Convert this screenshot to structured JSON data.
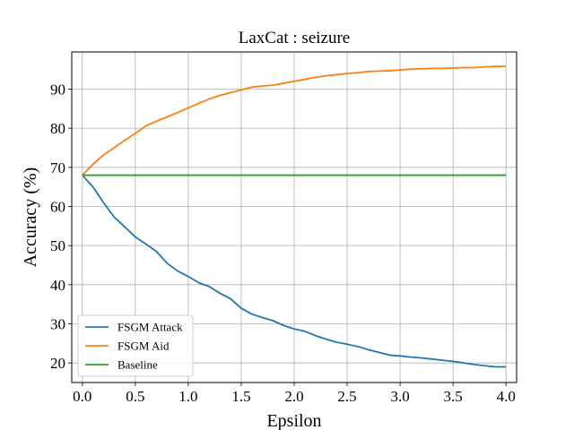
{
  "chart_data": {
    "type": "line",
    "title": "LaxCat : seizure",
    "xlabel": "Epsilon",
    "ylabel": "Accuracy (%)",
    "xlim": [
      -0.1,
      4.1
    ],
    "ylim": [
      15,
      99.5
    ],
    "xticks": [
      0.0,
      0.5,
      1.0,
      1.5,
      2.0,
      2.5,
      3.0,
      3.5,
      4.0
    ],
    "xtick_labels": [
      "0.0",
      "0.5",
      "1.0",
      "1.5",
      "2.0",
      "2.5",
      "3.0",
      "3.5",
      "4.0"
    ],
    "yticks": [
      20,
      30,
      40,
      50,
      60,
      70,
      80,
      90
    ],
    "ytick_labels": [
      "20",
      "30",
      "40",
      "50",
      "60",
      "70",
      "80",
      "90"
    ],
    "grid": true,
    "legend_position": "lower-left",
    "series": [
      {
        "name": "FSGM Attack",
        "color": "#1f77b4",
        "x": [
          0.0,
          0.1,
          0.2,
          0.3,
          0.4,
          0.5,
          0.6,
          0.7,
          0.8,
          0.9,
          1.0,
          1.1,
          1.2,
          1.3,
          1.4,
          1.5,
          1.6,
          1.7,
          1.8,
          1.9,
          2.0,
          2.1,
          2.2,
          2.3,
          2.4,
          2.5,
          2.6,
          2.7,
          2.8,
          2.9,
          3.0,
          3.1,
          3.2,
          3.3,
          3.4,
          3.5,
          3.6,
          3.7,
          3.8,
          3.9,
          4.0
        ],
        "values": [
          68.0,
          65.0,
          61.0,
          57.3,
          54.8,
          52.2,
          50.4,
          48.5,
          45.5,
          43.5,
          42.1,
          40.5,
          39.5,
          37.8,
          36.4,
          34.0,
          32.5,
          31.6,
          30.8,
          29.6,
          28.7,
          28.1,
          27.0,
          26.1,
          25.3,
          24.8,
          24.2,
          23.4,
          22.7,
          22.0,
          21.8,
          21.5,
          21.3,
          21.0,
          20.7,
          20.4,
          20.0,
          19.6,
          19.3,
          19.0,
          19.0
        ]
      },
      {
        "name": "FSGM Aid",
        "color": "#ff7f0e",
        "x": [
          0.0,
          0.1,
          0.2,
          0.3,
          0.4,
          0.5,
          0.6,
          0.7,
          0.8,
          0.9,
          1.0,
          1.1,
          1.2,
          1.3,
          1.4,
          1.5,
          1.6,
          1.7,
          1.8,
          1.9,
          2.0,
          2.1,
          2.2,
          2.3,
          2.4,
          2.5,
          2.6,
          2.7,
          2.8,
          2.9,
          3.0,
          3.1,
          3.2,
          3.3,
          3.4,
          3.5,
          3.6,
          3.7,
          3.8,
          3.9,
          4.0
        ],
        "values": [
          68.0,
          70.8,
          73.2,
          75.0,
          76.9,
          78.7,
          80.6,
          81.8,
          82.9,
          84.0,
          85.2,
          86.4,
          87.5,
          88.4,
          89.1,
          89.8,
          90.5,
          90.8,
          91.0,
          91.5,
          92.0,
          92.5,
          93.0,
          93.4,
          93.7,
          94.0,
          94.2,
          94.5,
          94.6,
          94.7,
          94.9,
          95.1,
          95.2,
          95.3,
          95.3,
          95.4,
          95.5,
          95.5,
          95.7,
          95.8,
          95.8
        ]
      },
      {
        "name": "Baseline",
        "color": "#2ca02c",
        "x": [
          0.0,
          4.0
        ],
        "values": [
          68.0,
          68.0
        ]
      }
    ]
  }
}
